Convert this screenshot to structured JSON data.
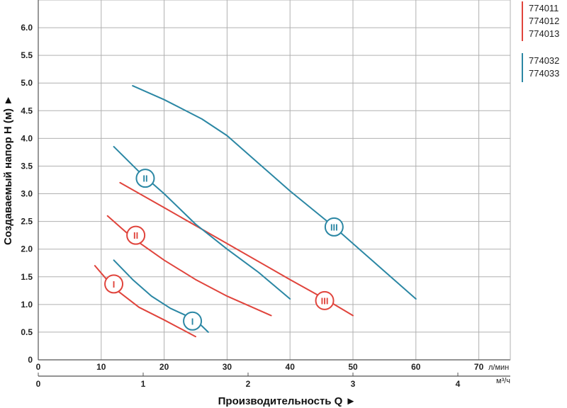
{
  "chart_data": {
    "type": "line",
    "xlabel": "Производительность Q ►",
    "ylabel": "Создаваемый напор H (м) ►",
    "x_unit": "л/мин",
    "x2_unit": "м³/ч",
    "xlim": [
      0,
      75
    ],
    "ylim": [
      0,
      6.5
    ],
    "x_ticks": [
      "0",
      "10",
      "20",
      "30",
      "40",
      "50",
      "60",
      "70"
    ],
    "x2_ticks": [
      "0",
      "1",
      "2",
      "3",
      "4"
    ],
    "y_ticks": [
      "0",
      "0.5",
      "1.0",
      "1.5",
      "2.0",
      "2.5",
      "3.0",
      "3.5",
      "4.0",
      "4.5",
      "5.0",
      "5.5",
      "6.0"
    ],
    "grid": true,
    "legend_position": "top-right",
    "legend": {
      "red_group": [
        "774011",
        "774012",
        "774013"
      ],
      "blue_group": [
        "774032",
        "774033"
      ]
    },
    "colors": {
      "red": "#e0443c",
      "blue": "#2b87a4",
      "grid": "#b0b0b0"
    },
    "series": [
      {
        "label": "I",
        "color": "red",
        "points": [
          [
            9,
            1.7
          ],
          [
            12,
            1.3
          ],
          [
            16,
            0.95
          ],
          [
            20,
            0.72
          ],
          [
            25,
            0.42
          ]
        ],
        "marker": [
          12,
          1.37
        ]
      },
      {
        "label": "II",
        "color": "red",
        "points": [
          [
            11,
            2.6
          ],
          [
            15,
            2.2
          ],
          [
            20,
            1.8
          ],
          [
            25,
            1.45
          ],
          [
            30,
            1.15
          ],
          [
            37,
            0.8
          ]
        ],
        "marker": [
          15.5,
          2.25
        ]
      },
      {
        "label": "III",
        "color": "red",
        "points": [
          [
            13,
            3.2
          ],
          [
            20,
            2.75
          ],
          [
            30,
            2.1
          ],
          [
            40,
            1.45
          ],
          [
            46,
            1.07
          ],
          [
            50,
            0.8
          ]
        ],
        "marker": [
          45.5,
          1.07
        ]
      },
      {
        "label": "I",
        "color": "blue",
        "points": [
          [
            12,
            1.8
          ],
          [
            15,
            1.45
          ],
          [
            18,
            1.15
          ],
          [
            21,
            0.93
          ],
          [
            25,
            0.72
          ],
          [
            27,
            0.5
          ]
        ],
        "marker": [
          24.5,
          0.7
        ]
      },
      {
        "label": "II",
        "color": "blue",
        "points": [
          [
            12,
            3.85
          ],
          [
            16,
            3.4
          ],
          [
            20,
            3.0
          ],
          [
            25,
            2.45
          ],
          [
            30,
            2.0
          ],
          [
            35,
            1.58
          ],
          [
            40,
            1.1
          ]
        ],
        "marker": [
          17,
          3.28
        ]
      },
      {
        "label": "III",
        "color": "blue",
        "points": [
          [
            15,
            4.95
          ],
          [
            20,
            4.7
          ],
          [
            26,
            4.35
          ],
          [
            30,
            4.05
          ],
          [
            35,
            3.55
          ],
          [
            40,
            3.05
          ],
          [
            47,
            2.4
          ],
          [
            53,
            1.8
          ],
          [
            60,
            1.1
          ]
        ],
        "marker": [
          47,
          2.4
        ]
      }
    ]
  }
}
